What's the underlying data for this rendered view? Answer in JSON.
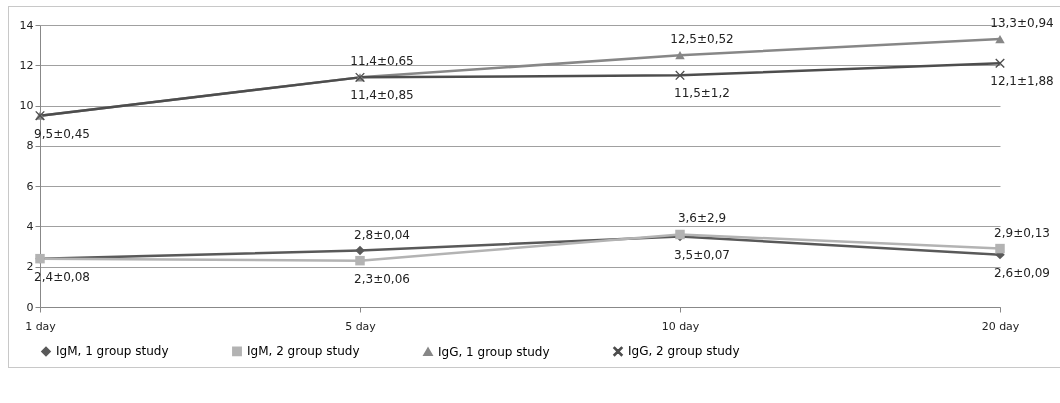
{
  "chart_data": {
    "type": "line",
    "categories": [
      "1 day",
      "5 day",
      "10 day",
      "20 day"
    ],
    "series": [
      {
        "name": "IgM, 1 group study",
        "color": "#595959",
        "marker": "diamond",
        "values": [
          2.4,
          2.8,
          3.5,
          2.6
        ],
        "value_labels": [
          "2,4±0,08",
          "2,8±0,04",
          "3,5±0,07",
          "2,6±0,09"
        ]
      },
      {
        "name": "IgM, 2 group study",
        "color": "#b3b3b3",
        "marker": "square",
        "values": [
          2.4,
          2.3,
          3.6,
          2.9
        ],
        "value_labels": [
          null,
          "2,3±0,06",
          "3,6±2,9",
          "2,9±0,13"
        ]
      },
      {
        "name": "IgG, 1 group study",
        "color": "#878787",
        "marker": "triangle",
        "values": [
          9.5,
          11.4,
          12.5,
          13.3
        ],
        "value_labels": [
          null,
          "11,4±0,65",
          "12,5±0,52",
          "13,3±0,94"
        ]
      },
      {
        "name": "IgG, 2 group study",
        "color": "#4d4d4d",
        "marker": "cross",
        "values": [
          9.5,
          11.4,
          11.5,
          12.1
        ],
        "value_labels": [
          "9,5±0,45",
          "11,4±0,85",
          "11,5±1,2",
          "12,1±1,88"
        ]
      }
    ],
    "ylim": [
      0,
      14
    ],
    "yticks": [
      0,
      2,
      4,
      6,
      8,
      10,
      12,
      14
    ],
    "grid": "y",
    "legend": "bottom",
    "line_style": "solid"
  }
}
